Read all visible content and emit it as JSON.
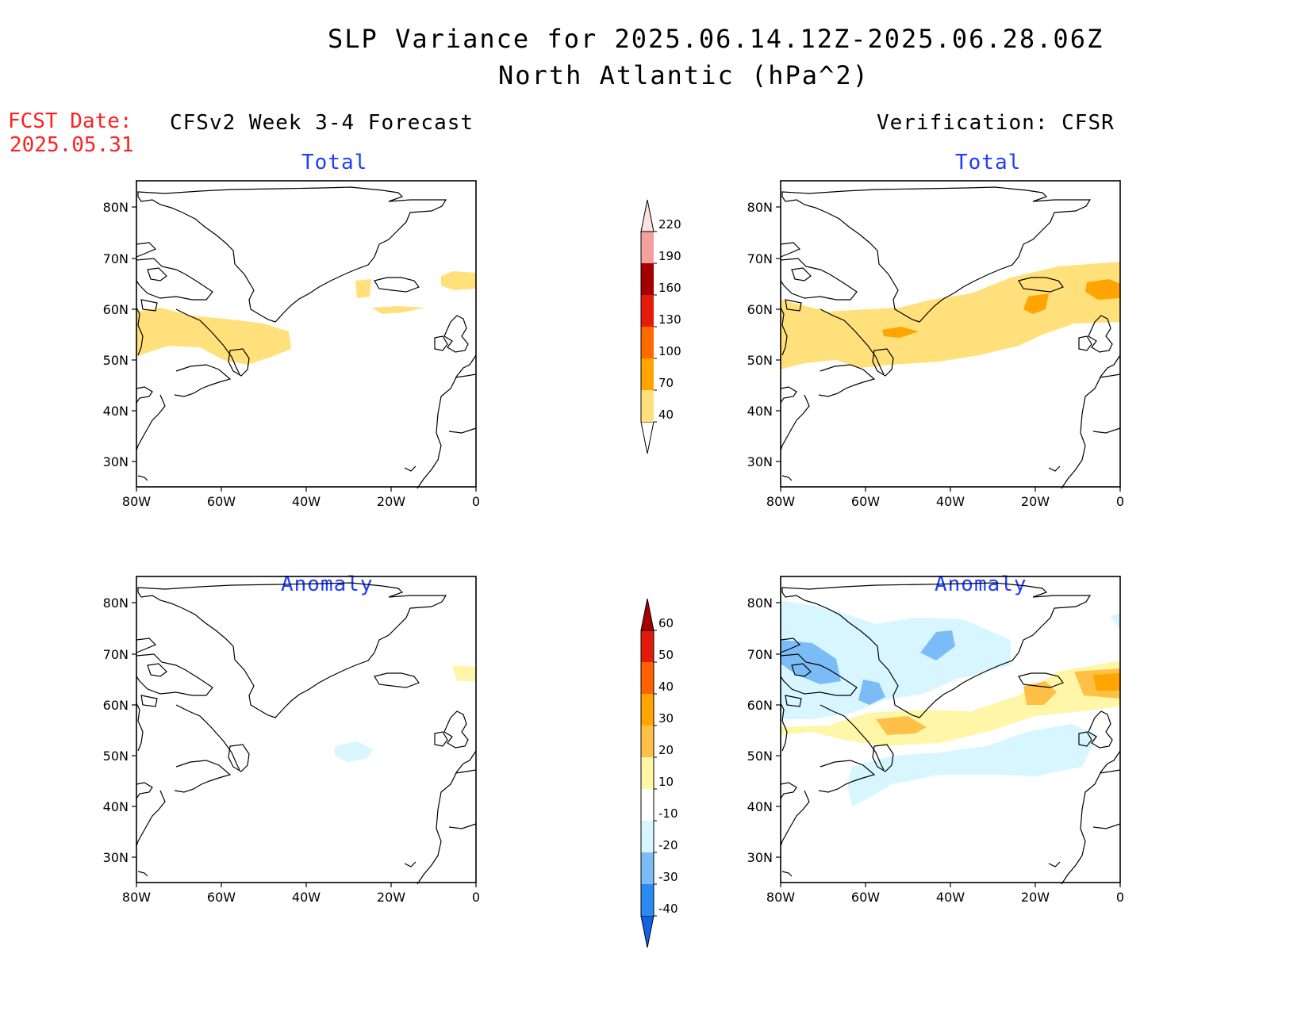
{
  "header": {
    "title": "SLP Variance for 2025.06.14.12Z-2025.06.28.06Z",
    "subtitle": "North Atlantic (hPa^2)",
    "fcst_label": "FCST Date:",
    "fcst_date": "2025.05.31"
  },
  "columns": {
    "left": "CFSv2 Week 3-4 Forecast",
    "right": "Verification: CFSR"
  },
  "panels": {
    "fc_total": {
      "label": "Total"
    },
    "vf_total": {
      "label": "Total"
    },
    "fc_anom": {
      "label": "Anomaly"
    },
    "vf_anom": {
      "label": "Anomaly"
    }
  },
  "axes": {
    "lat_ticks": [
      "80N",
      "70N",
      "60N",
      "50N",
      "40N",
      "30N"
    ],
    "lon_ticks": [
      "80W",
      "60W",
      "40W",
      "20W",
      "0"
    ]
  },
  "colorbars": {
    "total": {
      "levels": [
        "40",
        "70",
        "100",
        "130",
        "160",
        "190",
        "220"
      ],
      "colors": [
        "#ffe07a",
        "#ffa400",
        "#ff6a00",
        "#e41c0a",
        "#a40000",
        "#f4a0a0",
        "#fde0e0"
      ]
    },
    "anomaly": {
      "levels": [
        "-40",
        "-30",
        "-20",
        "-10",
        "10",
        "20",
        "30",
        "40",
        "50",
        "60"
      ],
      "colors": [
        "#1462e4",
        "#2a8cf0",
        "#7bbcf6",
        "#d8f6ff",
        "#ffffff",
        "#fff6a8",
        "#ffc048",
        "#ffa400",
        "#ff6000",
        "#e21a0a",
        "#a80000"
      ]
    }
  }
}
